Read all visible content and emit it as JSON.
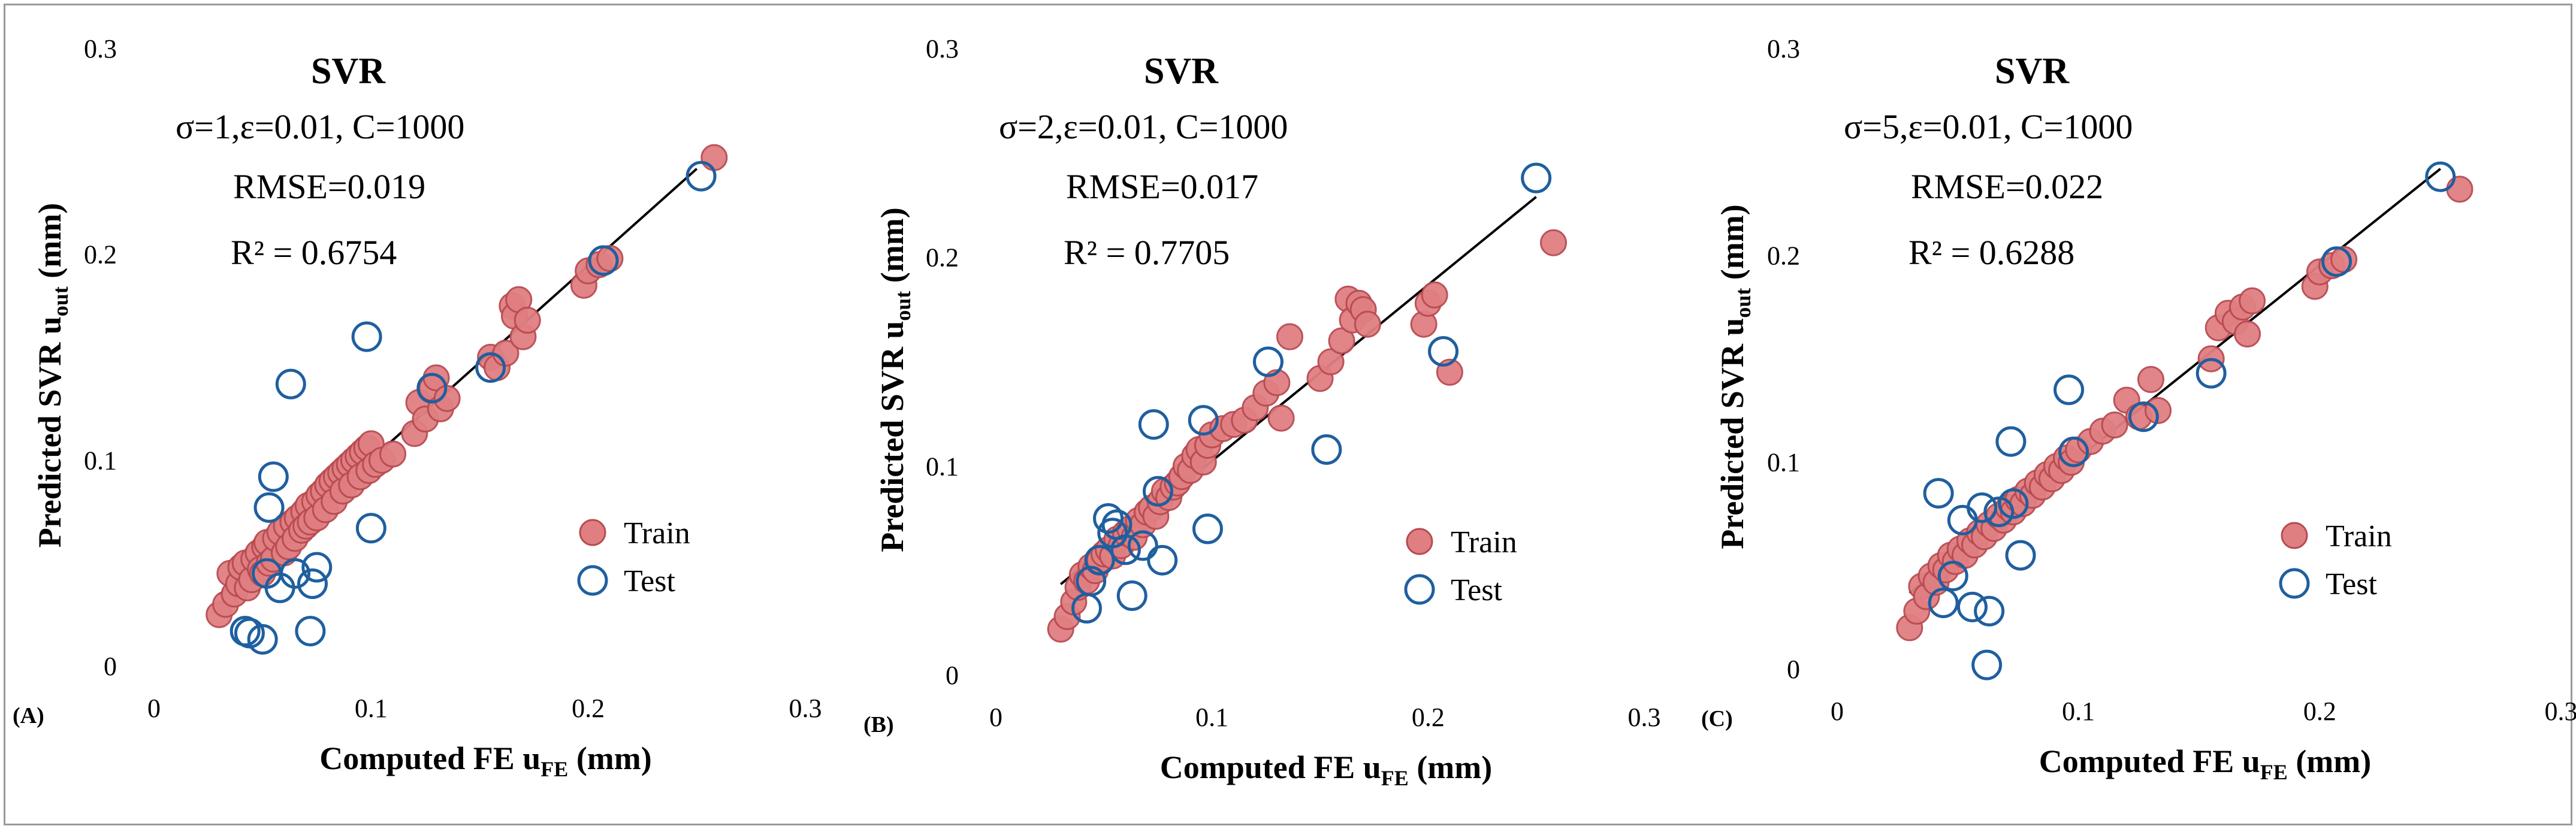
{
  "chart_data": [
    {
      "panel_label": "(A)",
      "type": "scatter",
      "title": "SVR",
      "params": "σ=1,ε=0.01, C=1000",
      "rmse": "RMSE=0.019",
      "r2": "R² = 0.6754",
      "xlabel": "Computed FE u",
      "xlabel_sub": "FE",
      "xlabel_unit": " (mm)",
      "ylabel": "Predicted  SVR u",
      "ylabel_sub": "out",
      "ylabel_unit": " (mm)",
      "xlim": [
        0,
        0.3
      ],
      "ylim": [
        0,
        0.3
      ],
      "xticks": [
        "0",
        "0.1",
        "0.2",
        "0.3"
      ],
      "yticks": [
        "0",
        "0.1",
        "0.2",
        "0.3"
      ],
      "legend_placement": "lower-right",
      "series": [
        {
          "name": "Train",
          "marker": "filled-circle",
          "points": [
            [
              0.03,
              0.025
            ],
            [
              0.033,
              0.03
            ],
            [
              0.035,
              0.045
            ],
            [
              0.037,
              0.035
            ],
            [
              0.039,
              0.04
            ],
            [
              0.04,
              0.048
            ],
            [
              0.042,
              0.05
            ],
            [
              0.043,
              0.038
            ],
            [
              0.045,
              0.042
            ],
            [
              0.046,
              0.052
            ],
            [
              0.048,
              0.055
            ],
            [
              0.049,
              0.047
            ],
            [
              0.05,
              0.045
            ],
            [
              0.051,
              0.058
            ],
            [
              0.052,
              0.06
            ],
            [
              0.053,
              0.05
            ],
            [
              0.055,
              0.052
            ],
            [
              0.056,
              0.062
            ],
            [
              0.058,
              0.065
            ],
            [
              0.06,
              0.055
            ],
            [
              0.061,
              0.068
            ],
            [
              0.062,
              0.058
            ],
            [
              0.064,
              0.07
            ],
            [
              0.065,
              0.062
            ],
            [
              0.066,
              0.072
            ],
            [
              0.068,
              0.066
            ],
            [
              0.069,
              0.075
            ],
            [
              0.07,
              0.068
            ],
            [
              0.071,
              0.078
            ],
            [
              0.072,
              0.07
            ],
            [
              0.074,
              0.08
            ],
            [
              0.075,
              0.072
            ],
            [
              0.076,
              0.083
            ],
            [
              0.078,
              0.085
            ],
            [
              0.079,
              0.076
            ],
            [
              0.08,
              0.088
            ],
            [
              0.082,
              0.09
            ],
            [
              0.083,
              0.08
            ],
            [
              0.084,
              0.092
            ],
            [
              0.086,
              0.094
            ],
            [
              0.087,
              0.085
            ],
            [
              0.088,
              0.096
            ],
            [
              0.09,
              0.098
            ],
            [
              0.091,
              0.088
            ],
            [
              0.092,
              0.1
            ],
            [
              0.094,
              0.102
            ],
            [
              0.095,
              0.092
            ],
            [
              0.096,
              0.104
            ],
            [
              0.098,
              0.106
            ],
            [
              0.099,
              0.095
            ],
            [
              0.1,
              0.108
            ],
            [
              0.102,
              0.098
            ],
            [
              0.105,
              0.1
            ],
            [
              0.11,
              0.103
            ],
            [
              0.12,
              0.113
            ],
            [
              0.122,
              0.128
            ],
            [
              0.125,
              0.12
            ],
            [
              0.128,
              0.135
            ],
            [
              0.13,
              0.14
            ],
            [
              0.132,
              0.125
            ],
            [
              0.135,
              0.13
            ],
            [
              0.155,
              0.15
            ],
            [
              0.158,
              0.145
            ],
            [
              0.162,
              0.152
            ],
            [
              0.165,
              0.175
            ],
            [
              0.166,
              0.17
            ],
            [
              0.168,
              0.178
            ],
            [
              0.17,
              0.16
            ],
            [
              0.172,
              0.168
            ],
            [
              0.198,
              0.185
            ],
            [
              0.2,
              0.192
            ],
            [
              0.205,
              0.195
            ],
            [
              0.21,
              0.198
            ],
            [
              0.258,
              0.247
            ]
          ]
        },
        {
          "name": "Test",
          "marker": "open-circle",
          "points": [
            [
              0.042,
              0.017
            ],
            [
              0.044,
              0.016
            ],
            [
              0.05,
              0.013
            ],
            [
              0.052,
              0.045
            ],
            [
              0.053,
              0.077
            ],
            [
              0.055,
              0.092
            ],
            [
              0.058,
              0.038
            ],
            [
              0.063,
              0.137
            ],
            [
              0.065,
              0.045
            ],
            [
              0.072,
              0.017
            ],
            [
              0.073,
              0.04
            ],
            [
              0.075,
              0.048
            ],
            [
              0.098,
              0.16
            ],
            [
              0.1,
              0.067
            ],
            [
              0.128,
              0.135
            ],
            [
              0.155,
              0.145
            ],
            [
              0.207,
              0.197
            ],
            [
              0.252,
              0.238
            ]
          ]
        }
      ]
    },
    {
      "panel_label": "(B)",
      "type": "scatter",
      "title": "SVR",
      "params": "σ=2,ε=0.01, C=1000",
      "rmse": "RMSE=0.017",
      "r2": "R² = 0.7705",
      "xlabel": "Computed FE u",
      "xlabel_sub": "FE",
      "xlabel_unit": " (mm)",
      "ylabel": "Predicted  SVR u",
      "ylabel_sub": "out",
      "ylabel_unit": " (mm)",
      "xlim": [
        0,
        0.3
      ],
      "ylim": [
        0,
        0.3
      ],
      "xticks": [
        "0",
        "0.1",
        "0.2",
        "0.3"
      ],
      "yticks": [
        "0",
        "0.1",
        "0.2",
        "0.3"
      ],
      "legend_placement": "lower-right",
      "series": [
        {
          "name": "Train",
          "marker": "filled-circle",
          "points": [
            [
              0.03,
              0.022
            ],
            [
              0.033,
              0.028
            ],
            [
              0.036,
              0.035
            ],
            [
              0.038,
              0.042
            ],
            [
              0.04,
              0.048
            ],
            [
              0.042,
              0.045
            ],
            [
              0.044,
              0.052
            ],
            [
              0.046,
              0.05
            ],
            [
              0.048,
              0.055
            ],
            [
              0.05,
              0.058
            ],
            [
              0.052,
              0.06
            ],
            [
              0.054,
              0.057
            ],
            [
              0.056,
              0.065
            ],
            [
              0.058,
              0.062
            ],
            [
              0.06,
              0.068
            ],
            [
              0.062,
              0.07
            ],
            [
              0.064,
              0.066
            ],
            [
              0.066,
              0.074
            ],
            [
              0.068,
              0.072
            ],
            [
              0.07,
              0.078
            ],
            [
              0.072,
              0.08
            ],
            [
              0.074,
              0.076
            ],
            [
              0.076,
              0.083
            ],
            [
              0.078,
              0.088
            ],
            [
              0.08,
              0.085
            ],
            [
              0.082,
              0.09
            ],
            [
              0.084,
              0.092
            ],
            [
              0.086,
              0.095
            ],
            [
              0.088,
              0.1
            ],
            [
              0.09,
              0.098
            ],
            [
              0.092,
              0.105
            ],
            [
              0.094,
              0.108
            ],
            [
              0.096,
              0.102
            ],
            [
              0.098,
              0.11
            ],
            [
              0.1,
              0.115
            ],
            [
              0.105,
              0.118
            ],
            [
              0.11,
              0.12
            ],
            [
              0.115,
              0.122
            ],
            [
              0.12,
              0.128
            ],
            [
              0.125,
              0.135
            ],
            [
              0.13,
              0.14
            ],
            [
              0.132,
              0.123
            ],
            [
              0.136,
              0.162
            ],
            [
              0.15,
              0.142
            ],
            [
              0.155,
              0.15
            ],
            [
              0.16,
              0.16
            ],
            [
              0.163,
              0.18
            ],
            [
              0.165,
              0.17
            ],
            [
              0.168,
              0.178
            ],
            [
              0.17,
              0.175
            ],
            [
              0.172,
              0.168
            ],
            [
              0.198,
              0.168
            ],
            [
              0.2,
              0.178
            ],
            [
              0.203,
              0.182
            ],
            [
              0.21,
              0.145
            ],
            [
              0.258,
              0.207
            ]
          ]
        },
        {
          "name": "Test",
          "marker": "open-circle",
          "points": [
            [
              0.042,
              0.032
            ],
            [
              0.044,
              0.045
            ],
            [
              0.048,
              0.055
            ],
            [
              0.052,
              0.075
            ],
            [
              0.054,
              0.068
            ],
            [
              0.056,
              0.072
            ],
            [
              0.06,
              0.06
            ],
            [
              0.063,
              0.038
            ],
            [
              0.068,
              0.062
            ],
            [
              0.073,
              0.12
            ],
            [
              0.075,
              0.088
            ],
            [
              0.077,
              0.055
            ],
            [
              0.096,
              0.122
            ],
            [
              0.098,
              0.07
            ],
            [
              0.126,
              0.15
            ],
            [
              0.153,
              0.108
            ],
            [
              0.207,
              0.155
            ],
            [
              0.25,
              0.238
            ]
          ]
        }
      ]
    },
    {
      "panel_label": "(C)",
      "type": "scatter",
      "title": "SVR",
      "params": "σ=5,ε=0.01, C=1000",
      "rmse": "RMSE=0.022",
      "r2": "R² = 0.6288",
      "xlabel": "Computed FE u",
      "xlabel_sub": "FE",
      "xlabel_unit": " (mm)",
      "ylabel": "Predicted  SVR u",
      "ylabel_sub": "out",
      "ylabel_unit": " (mm)",
      "xlim": [
        0,
        0.3
      ],
      "ylim": [
        0,
        0.3
      ],
      "xticks": [
        "0",
        "0.1",
        "0.2",
        "0.3"
      ],
      "yticks": [
        "0",
        "0.1",
        "0.2",
        "0.3"
      ],
      "legend_placement": "lower-right",
      "series": [
        {
          "name": "Train",
          "marker": "filled-circle",
          "points": [
            [
              0.03,
              0.02
            ],
            [
              0.033,
              0.028
            ],
            [
              0.035,
              0.04
            ],
            [
              0.037,
              0.035
            ],
            [
              0.039,
              0.045
            ],
            [
              0.041,
              0.042
            ],
            [
              0.043,
              0.05
            ],
            [
              0.045,
              0.048
            ],
            [
              0.047,
              0.055
            ],
            [
              0.049,
              0.052
            ],
            [
              0.051,
              0.058
            ],
            [
              0.053,
              0.055
            ],
            [
              0.055,
              0.062
            ],
            [
              0.057,
              0.06
            ],
            [
              0.059,
              0.066
            ],
            [
              0.061,
              0.064
            ],
            [
              0.063,
              0.07
            ],
            [
              0.065,
              0.068
            ],
            [
              0.067,
              0.074
            ],
            [
              0.069,
              0.072
            ],
            [
              0.071,
              0.078
            ],
            [
              0.073,
              0.076
            ],
            [
              0.075,
              0.082
            ],
            [
              0.077,
              0.08
            ],
            [
              0.079,
              0.086
            ],
            [
              0.081,
              0.084
            ],
            [
              0.083,
              0.09
            ],
            [
              0.085,
              0.088
            ],
            [
              0.087,
              0.094
            ],
            [
              0.089,
              0.092
            ],
            [
              0.091,
              0.098
            ],
            [
              0.093,
              0.096
            ],
            [
              0.095,
              0.102
            ],
            [
              0.097,
              0.1
            ],
            [
              0.1,
              0.106
            ],
            [
              0.105,
              0.11
            ],
            [
              0.11,
              0.115
            ],
            [
              0.115,
              0.118
            ],
            [
              0.12,
              0.13
            ],
            [
              0.125,
              0.122
            ],
            [
              0.13,
              0.14
            ],
            [
              0.133,
              0.125
            ],
            [
              0.155,
              0.15
            ],
            [
              0.158,
              0.165
            ],
            [
              0.162,
              0.172
            ],
            [
              0.165,
              0.168
            ],
            [
              0.168,
              0.175
            ],
            [
              0.17,
              0.162
            ],
            [
              0.172,
              0.178
            ],
            [
              0.198,
              0.185
            ],
            [
              0.2,
              0.192
            ],
            [
              0.205,
              0.195
            ],
            [
              0.21,
              0.198
            ],
            [
              0.258,
              0.232
            ]
          ]
        },
        {
          "name": "Test",
          "marker": "open-circle",
          "points": [
            [
              0.042,
              0.085
            ],
            [
              0.044,
              0.032
            ],
            [
              0.048,
              0.045
            ],
            [
              0.052,
              0.072
            ],
            [
              0.056,
              0.03
            ],
            [
              0.06,
              0.078
            ],
            [
              0.062,
              0.002
            ],
            [
              0.063,
              0.028
            ],
            [
              0.067,
              0.076
            ],
            [
              0.072,
              0.11
            ],
            [
              0.073,
              0.08
            ],
            [
              0.076,
              0.055
            ],
            [
              0.096,
              0.135
            ],
            [
              0.098,
              0.105
            ],
            [
              0.127,
              0.122
            ],
            [
              0.155,
              0.143
            ],
            [
              0.207,
              0.197
            ],
            [
              0.25,
              0.238
            ]
          ]
        }
      ]
    }
  ]
}
